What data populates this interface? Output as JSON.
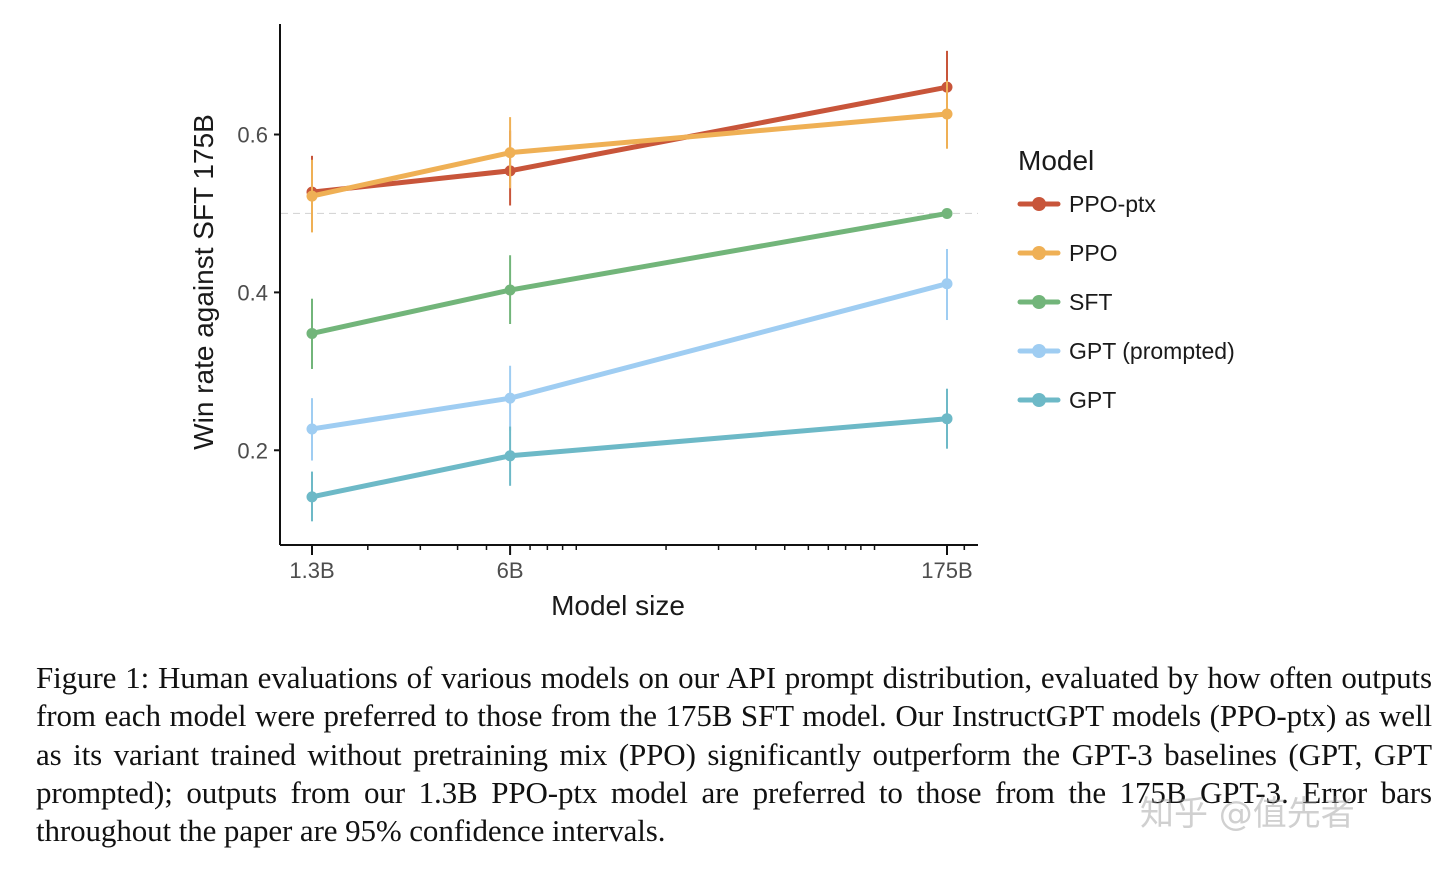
{
  "chart_data": {
    "type": "line",
    "xlabel": "Model size",
    "ylabel": "Win rate against SFT 175B",
    "x_scale": "log",
    "categories": [
      "1.3B",
      "6B",
      "175B"
    ],
    "x_params_billion": [
      1.3,
      6,
      175
    ],
    "xlim_params_billion": [
      1.1,
      210
    ],
    "ylim": [
      0.08,
      0.74
    ],
    "yticks": [
      0.2,
      0.4,
      0.6
    ],
    "ytick_labels": [
      "0.2",
      "0.4",
      "0.6"
    ],
    "reference_line": 0.5,
    "legend_title": "Model",
    "legend_position": "right",
    "series": [
      {
        "name": "PPO-ptx",
        "color": "#c8553a",
        "values": [
          0.527,
          0.554,
          0.66
        ],
        "error_low": [
          0.478,
          0.51,
          0.615
        ],
        "error_high": [
          0.573,
          0.605,
          0.706
        ]
      },
      {
        "name": "PPO",
        "color": "#efb055",
        "values": [
          0.522,
          0.577,
          0.626
        ],
        "error_low": [
          0.476,
          0.532,
          0.582
        ],
        "error_high": [
          0.568,
          0.622,
          0.668
        ]
      },
      {
        "name": "SFT",
        "color": "#72b57a",
        "values": [
          0.348,
          0.403,
          0.5
        ],
        "error_low": [
          0.303,
          0.36,
          0.5
        ],
        "error_high": [
          0.392,
          0.447,
          0.5
        ]
      },
      {
        "name": "GPT (prompted)",
        "color": "#9fcdf2",
        "values": [
          0.227,
          0.266,
          0.411
        ],
        "error_low": [
          0.187,
          0.225,
          0.365
        ],
        "error_high": [
          0.266,
          0.307,
          0.455
        ]
      },
      {
        "name": "GPT",
        "color": "#6db9c7",
        "values": [
          0.141,
          0.193,
          0.24
        ],
        "error_low": [
          0.11,
          0.155,
          0.202
        ],
        "error_high": [
          0.173,
          0.23,
          0.278
        ]
      }
    ]
  },
  "caption": "Figure 1: Human evaluations of various models on our API prompt distribution, evaluated by how often outputs from each model were preferred to those from the 175B SFT model. Our InstructGPT models (PPO-ptx) as well as its variant trained without pretraining mix (PPO) significantly outperform the GPT-3 baselines (GPT, GPT prompted); outputs from our 1.3B PPO-ptx model are preferred to those from the 175B GPT-3. Error bars throughout the paper are 95% confidence intervals.",
  "watermark": "知乎 @值先者"
}
